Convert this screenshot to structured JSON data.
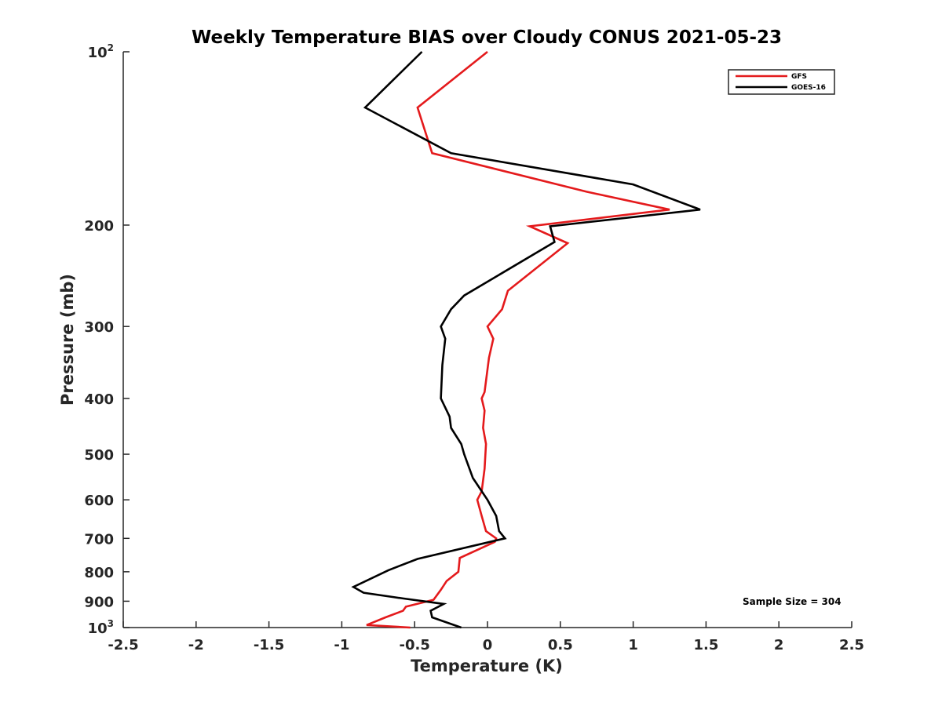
{
  "chart_data": {
    "type": "line",
    "title": "Weekly Temperature BIAS over Cloudy CONUS 2021-05-23",
    "xlabel": "Temperature (K)",
    "ylabel": "Pressure (mb)",
    "xlim": [
      -2.5,
      2.5
    ],
    "ylim": [
      100,
      1000
    ],
    "y_scale": "log",
    "y_direction": "reversed",
    "x_ticks": [
      "-2.5",
      "-2",
      "-1.5",
      "-1",
      "-0.5",
      "0",
      "0.5",
      "1",
      "1.5",
      "2",
      "2.5"
    ],
    "y_ticks": [
      {
        "value": 100,
        "base": "10",
        "exp": "2"
      },
      {
        "value": 200,
        "base": "200",
        "exp": ""
      },
      {
        "value": 300,
        "base": "300",
        "exp": ""
      },
      {
        "value": 400,
        "base": "400",
        "exp": ""
      },
      {
        "value": 500,
        "base": "500",
        "exp": ""
      },
      {
        "value": 600,
        "base": "600",
        "exp": ""
      },
      {
        "value": 700,
        "base": "700",
        "exp": ""
      },
      {
        "value": 800,
        "base": "800",
        "exp": ""
      },
      {
        "value": 900,
        "base": "900",
        "exp": ""
      },
      {
        "value": 1000,
        "base": "10",
        "exp": "3"
      }
    ],
    "legend": {
      "location": "top-right",
      "entries": [
        "GFS",
        "GOES-16"
      ]
    },
    "annotation": "Sample Size = 304",
    "grid": false,
    "series": [
      {
        "name": "GFS",
        "color": "#e41a1c",
        "points": [
          [
            0.0,
            100
          ],
          [
            -0.48,
            125
          ],
          [
            -0.38,
            150
          ],
          [
            0.68,
            175
          ],
          [
            1.25,
            188
          ],
          [
            0.29,
            201
          ],
          [
            0.55,
            215
          ],
          [
            0.14,
            260
          ],
          [
            0.1,
            280
          ],
          [
            0.0,
            300
          ],
          [
            0.04,
            315
          ],
          [
            0.01,
            340
          ],
          [
            -0.02,
            390
          ],
          [
            -0.04,
            400
          ],
          [
            -0.02,
            420
          ],
          [
            -0.03,
            450
          ],
          [
            -0.01,
            480
          ],
          [
            -0.02,
            530
          ],
          [
            -0.04,
            580
          ],
          [
            -0.07,
            600
          ],
          [
            -0.04,
            640
          ],
          [
            -0.01,
            680
          ],
          [
            0.06,
            700
          ],
          [
            0.05,
            710
          ],
          [
            -0.19,
            757
          ],
          [
            -0.2,
            800
          ],
          [
            -0.28,
            830
          ],
          [
            -0.32,
            860
          ],
          [
            -0.37,
            895
          ],
          [
            -0.56,
            920
          ],
          [
            -0.58,
            935
          ],
          [
            -0.7,
            960
          ],
          [
            -0.83,
            990
          ],
          [
            -0.53,
            1000
          ]
        ]
      },
      {
        "name": "GOES-16",
        "color": "#000000",
        "points": [
          [
            -0.45,
            100
          ],
          [
            -0.84,
            125
          ],
          [
            -0.25,
            150
          ],
          [
            1.0,
            170
          ],
          [
            1.46,
            188
          ],
          [
            0.43,
            201
          ],
          [
            0.46,
            214
          ],
          [
            -0.16,
            265
          ],
          [
            -0.25,
            280
          ],
          [
            -0.32,
            300
          ],
          [
            -0.29,
            315
          ],
          [
            -0.31,
            350
          ],
          [
            -0.32,
            400
          ],
          [
            -0.26,
            430
          ],
          [
            -0.25,
            450
          ],
          [
            -0.18,
            480
          ],
          [
            -0.16,
            500
          ],
          [
            -0.1,
            550
          ],
          [
            0.0,
            600
          ],
          [
            0.06,
            640
          ],
          [
            0.08,
            680
          ],
          [
            0.12,
            700
          ],
          [
            -0.48,
            760
          ],
          [
            -0.68,
            795
          ],
          [
            -0.92,
            850
          ],
          [
            -0.85,
            870
          ],
          [
            -0.58,
            890
          ],
          [
            -0.3,
            910
          ],
          [
            -0.39,
            935
          ],
          [
            -0.38,
            960
          ],
          [
            -0.18,
            1000
          ]
        ]
      }
    ]
  }
}
